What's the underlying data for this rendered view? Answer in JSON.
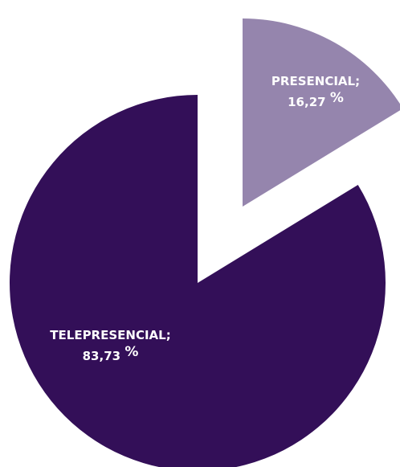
{
  "chart_data": {
    "type": "pie",
    "exploded": true,
    "slices": [
      {
        "category": "PRESENCIAL",
        "value": 16.27,
        "value_text": "16,27",
        "unit": "%",
        "color": "#9585ad"
      },
      {
        "category": "TELEPRESENCIAL",
        "value": 83.73,
        "value_text": "83,73",
        "unit": "%",
        "color": "#330f58"
      }
    ]
  }
}
